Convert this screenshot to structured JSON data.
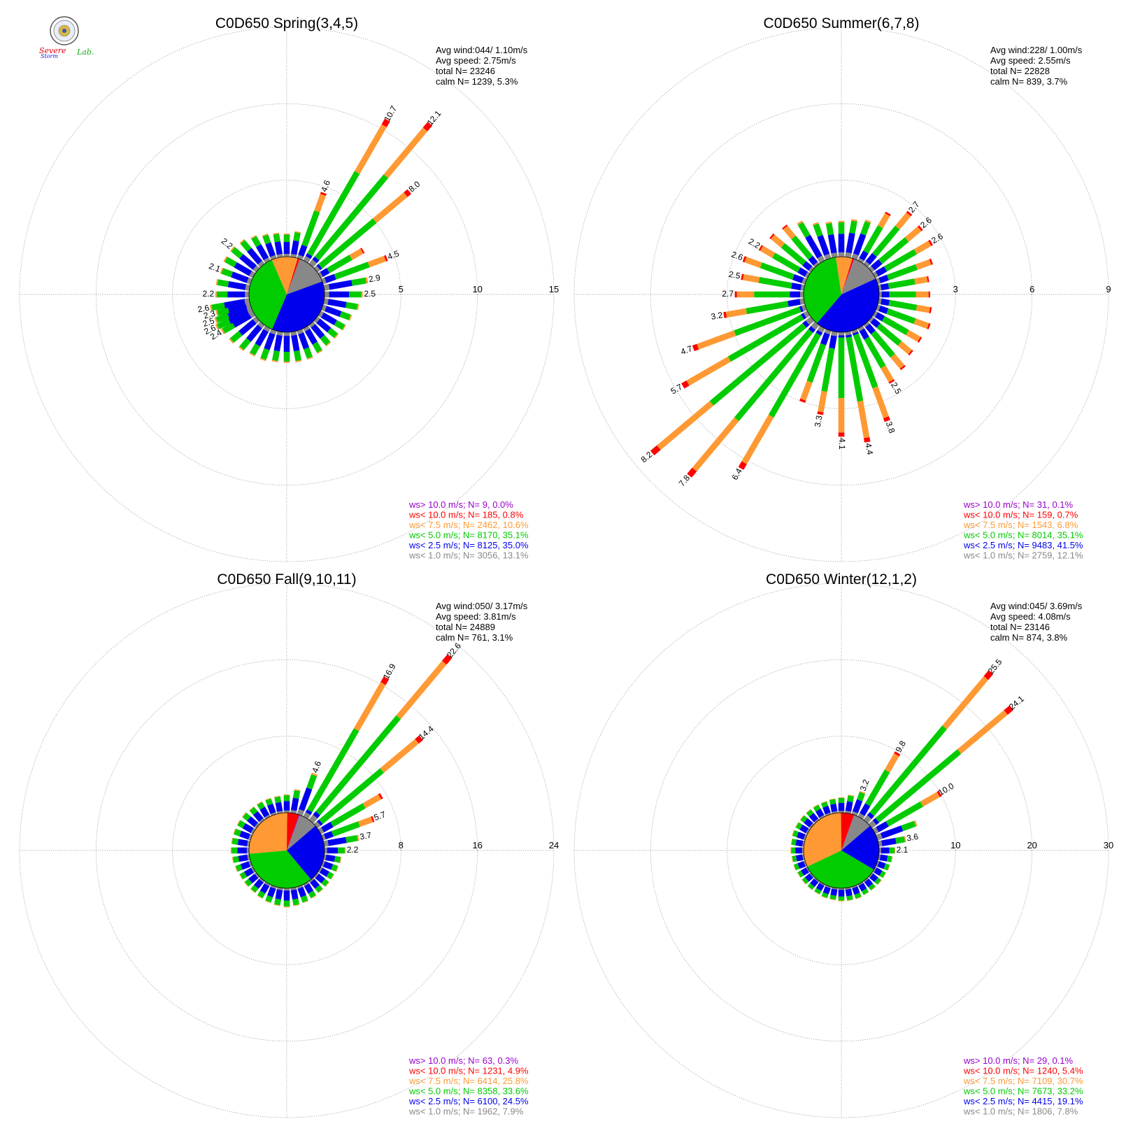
{
  "logo": {
    "text_severe": "Severe",
    "text_storm": "Storm",
    "text_lab": "Lab.",
    "colors": {
      "severe": "#e5000f",
      "storm": "#1b23d6",
      "lab": "#13a713"
    }
  },
  "colors": {
    "gt10": "#9900cc",
    "lt10": "#ff0000",
    "lt75": "#ff9933",
    "lt5": "#00cc00",
    "lt25": "#0000ee",
    "lt1": "#888888",
    "grid": "#888888"
  },
  "chart_data": [
    {
      "type": "windrose",
      "title": "C0D650 Spring(3,4,5)",
      "rings": [
        "5",
        "10",
        "15"
      ],
      "ring_max": 15,
      "info": [
        "Avg wind:044/ 1.10m/s",
        "Avg speed: 2.75m/s",
        "total N=      23246",
        "calm N=   1239,   5.3%"
      ],
      "legend": [
        {
          "key": "gt10",
          "text": "ws> 10.0 m/s; N=      9,  0.0%"
        },
        {
          "key": "lt10",
          "text": "ws< 10.0 m/s; N=   185,  0.8%"
        },
        {
          "key": "lt75",
          "text": "ws<  7.5 m/s; N=  2462, 10.6%"
        },
        {
          "key": "lt5",
          "text": "ws<  5.0 m/s; N=  8170, 35.1%"
        },
        {
          "key": "lt25",
          "text": "ws<  2.5 m/s; N=  8125, 35.0%"
        },
        {
          "key": "lt1",
          "text": "ws<  1.0 m/s; N=  3056, 13.1%"
        }
      ],
      "pie": [
        13.1,
        35.0,
        35.1,
        10.6,
        0.8,
        0.0
      ],
      "labeled_bars": [
        {
          "dir": 20,
          "total": 4.6
        },
        {
          "dir": 30,
          "total": 10.7
        },
        {
          "dir": 40,
          "total": 12.1
        },
        {
          "dir": 50,
          "total": 8.0
        },
        {
          "dir": 70,
          "total": 4.5
        },
        {
          "dir": 80,
          "total": 2.9
        },
        {
          "dir": 90,
          "total": 2.5
        },
        {
          "dir": 240,
          "total": 2.4
        },
        {
          "dir": 245,
          "total": 2.6
        },
        {
          "dir": 250,
          "total": 2.5
        },
        {
          "dir": 255,
          "total": 2.3
        },
        {
          "dir": 260,
          "total": 2.6
        },
        {
          "dir": 270,
          "total": 2.2
        },
        {
          "dir": 290,
          "total": 2.1
        },
        {
          "dir": 310,
          "total": 2.2
        }
      ],
      "small_bars": [
        {
          "dir": 0,
          "total": 1.5
        },
        {
          "dir": 10,
          "total": 1.7
        },
        {
          "dir": 60,
          "total": 3.3
        },
        {
          "dir": 100,
          "total": 2.3
        },
        {
          "dir": 110,
          "total": 2.0
        },
        {
          "dir": 120,
          "total": 1.9
        },
        {
          "dir": 130,
          "total": 1.8
        },
        {
          "dir": 140,
          "total": 1.8
        },
        {
          "dir": 150,
          "total": 1.9
        },
        {
          "dir": 160,
          "total": 2.0
        },
        {
          "dir": 170,
          "total": 2.0
        },
        {
          "dir": 180,
          "total": 2.0
        },
        {
          "dir": 190,
          "total": 2.0
        },
        {
          "dir": 200,
          "total": 2.1
        },
        {
          "dir": 210,
          "total": 2.1
        },
        {
          "dir": 220,
          "total": 2.2
        },
        {
          "dir": 230,
          "total": 2.3
        },
        {
          "dir": 280,
          "total": 2.2
        },
        {
          "dir": 300,
          "total": 2.2
        },
        {
          "dir": 320,
          "total": 2.1
        },
        {
          "dir": 330,
          "total": 1.9
        },
        {
          "dir": 340,
          "total": 1.7
        },
        {
          "dir": 350,
          "total": 1.6
        }
      ]
    },
    {
      "type": "windrose",
      "title": "C0D650 Summer(6,7,8)",
      "rings": [
        "3",
        "6",
        "9"
      ],
      "ring_max": 9,
      "info": [
        "Avg wind:228/ 1.00m/s",
        "Avg speed: 2.55m/s",
        "total N=      22828",
        "calm N=    839,   3.7%"
      ],
      "legend": [
        {
          "key": "gt10",
          "text": "ws> 10.0 m/s; N=     31,  0.1%"
        },
        {
          "key": "lt10",
          "text": "ws< 10.0 m/s; N=   159,  0.7%"
        },
        {
          "key": "lt75",
          "text": "ws<  7.5 m/s; N=  1543,  6.8%"
        },
        {
          "key": "lt5",
          "text": "ws<  5.0 m/s; N=  8014, 35.1%"
        },
        {
          "key": "lt25",
          "text": "ws<  2.5 m/s; N=  9483, 41.5%"
        },
        {
          "key": "lt1",
          "text": "ws<  1.0 m/s; N=  2759, 12.1%"
        }
      ],
      "pie": [
        12.1,
        41.5,
        35.1,
        6.8,
        0.7,
        0.1
      ],
      "labeled_bars": [
        {
          "dir": 40,
          "total": 2.7
        },
        {
          "dir": 50,
          "total": 2.6
        },
        {
          "dir": 60,
          "total": 2.6
        },
        {
          "dir": 150,
          "total": 2.5
        },
        {
          "dir": 160,
          "total": 3.8
        },
        {
          "dir": 170,
          "total": 4.4
        },
        {
          "dir": 180,
          "total": 4.1
        },
        {
          "dir": 190,
          "total": 3.3
        },
        {
          "dir": 210,
          "total": 6.4
        },
        {
          "dir": 220,
          "total": 7.8
        },
        {
          "dir": 230,
          "total": 8.2
        },
        {
          "dir": 240,
          "total": 5.7
        },
        {
          "dir": 250,
          "total": 4.7
        },
        {
          "dir": 260,
          "total": 3.2
        },
        {
          "dir": 270,
          "total": 2.7
        },
        {
          "dir": 280,
          "total": 2.5
        },
        {
          "dir": 290,
          "total": 2.6
        },
        {
          "dir": 300,
          "total": 2.2
        }
      ],
      "small_bars": [
        {
          "dir": 0,
          "total": 1.4
        },
        {
          "dir": 10,
          "total": 1.5
        },
        {
          "dir": 20,
          "total": 1.6
        },
        {
          "dir": 30,
          "total": 2.2
        },
        {
          "dir": 70,
          "total": 2.3
        },
        {
          "dir": 80,
          "total": 2.0
        },
        {
          "dir": 90,
          "total": 2.0
        },
        {
          "dir": 100,
          "total": 2.1
        },
        {
          "dir": 110,
          "total": 2.2
        },
        {
          "dir": 120,
          "total": 2.1
        },
        {
          "dir": 130,
          "total": 2.1
        },
        {
          "dir": 140,
          "total": 2.3
        },
        {
          "dir": 200,
          "total": 3.0
        },
        {
          "dir": 310,
          "total": 2.1
        },
        {
          "dir": 320,
          "total": 2.0
        },
        {
          "dir": 330,
          "total": 1.8
        },
        {
          "dir": 340,
          "total": 1.5
        },
        {
          "dir": 350,
          "total": 1.4
        }
      ]
    },
    {
      "type": "windrose",
      "title": "C0D650 Fall(9,10,11)",
      "rings": [
        "8",
        "16",
        "24"
      ],
      "ring_max": 24,
      "info": [
        "Avg wind:050/ 3.17m/s",
        "Avg speed: 3.81m/s",
        "total N=      24889",
        "calm N=    761,   3.1%"
      ],
      "legend": [
        {
          "key": "gt10",
          "text": "ws> 10.0 m/s; N=     63,  0.3%"
        },
        {
          "key": "lt10",
          "text": "ws< 10.0 m/s; N=  1231,  4.9%"
        },
        {
          "key": "lt75",
          "text": "ws<  7.5 m/s; N=  6414, 25.8%"
        },
        {
          "key": "lt5",
          "text": "ws<  5.0 m/s; N=  8358, 33.6%"
        },
        {
          "key": "lt25",
          "text": "ws<  2.5 m/s; N=  6100, 24.5%"
        },
        {
          "key": "lt1",
          "text": "ws<  1.0 m/s; N=  1962,  7.9%"
        }
      ],
      "pie": [
        7.9,
        24.5,
        33.6,
        25.8,
        4.9,
        0.3
      ],
      "labeled_bars": [
        {
          "dir": 20,
          "total": 4.6
        },
        {
          "dir": 30,
          "total": 16.9
        },
        {
          "dir": 40,
          "total": 22.6
        },
        {
          "dir": 50,
          "total": 14.4
        },
        {
          "dir": 70,
          "total": 5.7
        },
        {
          "dir": 80,
          "total": 3.7
        },
        {
          "dir": 90,
          "total": 2.2
        }
      ],
      "small_bars": [
        {
          "dir": 0,
          "total": 1.9
        },
        {
          "dir": 10,
          "total": 2.5
        },
        {
          "dir": 60,
          "total": 7.5
        },
        {
          "dir": 100,
          "total": 1.8
        },
        {
          "dir": 110,
          "total": 1.7
        },
        {
          "dir": 120,
          "total": 1.6
        },
        {
          "dir": 130,
          "total": 1.6
        },
        {
          "dir": 140,
          "total": 1.6
        },
        {
          "dir": 150,
          "total": 1.7
        },
        {
          "dir": 160,
          "total": 1.8
        },
        {
          "dir": 170,
          "total": 1.9
        },
        {
          "dir": 180,
          "total": 2.0
        },
        {
          "dir": 190,
          "total": 1.9
        },
        {
          "dir": 200,
          "total": 1.8
        },
        {
          "dir": 210,
          "total": 1.7
        },
        {
          "dir": 220,
          "total": 1.6
        },
        {
          "dir": 230,
          "total": 1.6
        },
        {
          "dir": 240,
          "total": 1.6
        },
        {
          "dir": 250,
          "total": 1.7
        },
        {
          "dir": 260,
          "total": 1.8
        },
        {
          "dir": 270,
          "total": 1.9
        },
        {
          "dir": 280,
          "total": 1.9
        },
        {
          "dir": 290,
          "total": 1.9
        },
        {
          "dir": 300,
          "total": 1.9
        },
        {
          "dir": 310,
          "total": 1.9
        },
        {
          "dir": 320,
          "total": 1.8
        },
        {
          "dir": 330,
          "total": 1.8
        },
        {
          "dir": 340,
          "total": 1.8
        },
        {
          "dir": 350,
          "total": 1.8
        }
      ]
    },
    {
      "type": "windrose",
      "title": "C0D650 Winter(12,1,2)",
      "rings": [
        "10",
        "20",
        "30"
      ],
      "ring_max": 30,
      "info": [
        "Avg wind:045/ 3.69m/s",
        "Avg speed: 4.08m/s",
        "total N=      23146",
        "calm N=    874,   3.8%"
      ],
      "legend": [
        {
          "key": "gt10",
          "text": "ws> 10.0 m/s; N=     29,  0.1%"
        },
        {
          "key": "lt10",
          "text": "ws< 10.0 m/s; N=  1240,  5.4%"
        },
        {
          "key": "lt75",
          "text": "ws<  7.5 m/s; N=  7109, 30.7%"
        },
        {
          "key": "lt5",
          "text": "ws<  5.0 m/s; N=  7673, 33.2%"
        },
        {
          "key": "lt25",
          "text": "ws<  2.5 m/s; N=  4415, 19.1%"
        },
        {
          "key": "lt1",
          "text": "ws<  1.0 m/s; N=  1806,  7.8%"
        }
      ],
      "pie": [
        7.8,
        19.1,
        33.2,
        30.7,
        5.4,
        0.1
      ],
      "labeled_bars": [
        {
          "dir": 20,
          "total": 3.2
        },
        {
          "dir": 30,
          "total": 9.8
        },
        {
          "dir": 40,
          "total": 25.5
        },
        {
          "dir": 50,
          "total": 24.1
        },
        {
          "dir": 60,
          "total": 10.0
        },
        {
          "dir": 80,
          "total": 3.6
        },
        {
          "dir": 90,
          "total": 2.1
        }
      ],
      "small_bars": [
        {
          "dir": 0,
          "total": 2.0
        },
        {
          "dir": 10,
          "total": 2.4
        },
        {
          "dir": 70,
          "total": 5.5
        },
        {
          "dir": 100,
          "total": 1.8
        },
        {
          "dir": 110,
          "total": 1.7
        },
        {
          "dir": 120,
          "total": 1.6
        },
        {
          "dir": 130,
          "total": 1.6
        },
        {
          "dir": 140,
          "total": 1.6
        },
        {
          "dir": 150,
          "total": 1.6
        },
        {
          "dir": 160,
          "total": 1.7
        },
        {
          "dir": 170,
          "total": 1.7
        },
        {
          "dir": 180,
          "total": 1.7
        },
        {
          "dir": 190,
          "total": 1.6
        },
        {
          "dir": 200,
          "total": 1.6
        },
        {
          "dir": 210,
          "total": 1.5
        },
        {
          "dir": 220,
          "total": 1.5
        },
        {
          "dir": 230,
          "total": 1.5
        },
        {
          "dir": 240,
          "total": 1.5
        },
        {
          "dir": 250,
          "total": 1.6
        },
        {
          "dir": 260,
          "total": 1.6
        },
        {
          "dir": 270,
          "total": 1.7
        },
        {
          "dir": 280,
          "total": 1.7
        },
        {
          "dir": 290,
          "total": 1.8
        },
        {
          "dir": 300,
          "total": 1.8
        },
        {
          "dir": 310,
          "total": 1.8
        },
        {
          "dir": 320,
          "total": 1.8
        },
        {
          "dir": 330,
          "total": 1.8
        },
        {
          "dir": 340,
          "total": 1.8
        },
        {
          "dir": 350,
          "total": 1.9
        }
      ]
    }
  ]
}
